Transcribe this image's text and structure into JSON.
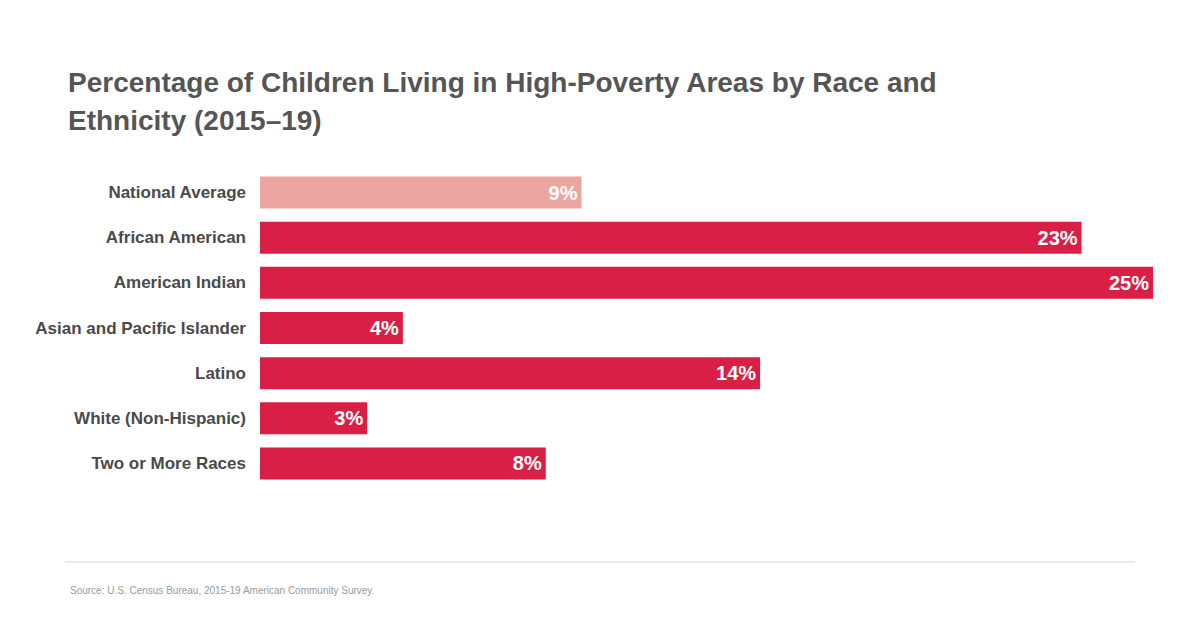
{
  "chart_data": {
    "type": "bar",
    "title": "Percentage of Children Living in High-Poverty Areas by Race and Ethnicity (2015–19)",
    "source": "Source: U.S. Census Bureau, 2015-19 American Community Survey.",
    "orientation": "horizontal",
    "categories": [
      "National Average",
      "African American",
      "American Indian",
      "Asian and Pacific Islander",
      "Latino",
      "White (Non-Hispanic)",
      "Two or More Races"
    ],
    "values": [
      9,
      23,
      25,
      4,
      14,
      3,
      8
    ],
    "value_labels": [
      "9%",
      "23%",
      "25%",
      "4%",
      "14%",
      "3%",
      "8%"
    ],
    "colors": [
      "#eba6a2",
      "#d91f45",
      "#d91f45",
      "#d91f45",
      "#d91f45",
      "#d91f45",
      "#d91f45"
    ],
    "data_labels": true,
    "xlim": [
      0,
      25
    ],
    "tick_labels": "y",
    "grid": false
  }
}
